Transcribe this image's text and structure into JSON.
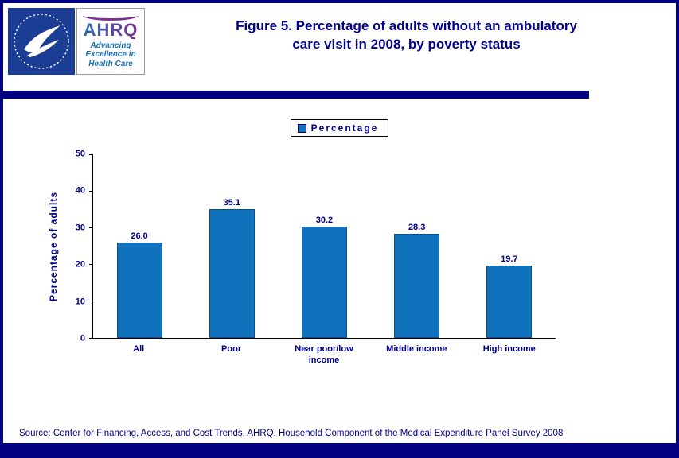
{
  "page": {
    "title_line1": "Figure 5. Percentage of adults without an ambulatory",
    "title_line2": "care visit in 2008, by poverty status",
    "source": "Source: Center for Financing, Access, and Cost Trends, AHRQ, Household Component of the Medical Expenditure Panel Survey 2008"
  },
  "logo": {
    "ahrq_text": "AHRQ",
    "tagline_line1": "Advancing",
    "tagline_line2": "Excellence in",
    "tagline_line3": "Health Care"
  },
  "legend": {
    "label": "Percentage"
  },
  "chart_data": {
    "type": "bar",
    "categories": [
      "All",
      "Poor",
      "Near poor/low income",
      "Middle income",
      "High income"
    ],
    "values": [
      26.0,
      35.1,
      30.2,
      28.3,
      19.7
    ],
    "title": "Figure 5. Percentage of adults without an ambulatory care visit in 2008, by poverty status",
    "xlabel": "",
    "ylabel": "Percentage of adults",
    "ylim": [
      0,
      50
    ],
    "yticks": [
      0,
      10,
      20,
      30,
      40,
      50
    ],
    "legend": [
      "Percentage"
    ],
    "legend_position": "top",
    "grid": false,
    "bar_color": "#1072BC"
  }
}
